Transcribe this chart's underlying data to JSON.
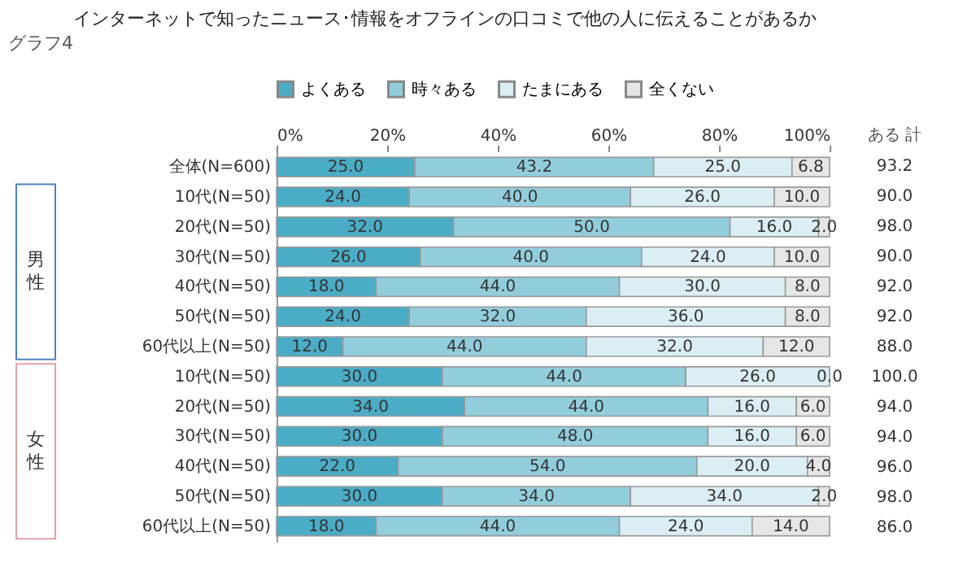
{
  "chart_data": {
    "type": "bar",
    "orientation": "horizontal",
    "stacked": true,
    "title": "インターネットで知ったニュース･情報をオフラインの口コミで他の人に伝えることがあるか",
    "categories": [
      "全体(N=600)",
      "10代(N=50)",
      "20代(N=50)",
      "30代(N=50)",
      "40代(N=50)",
      "50代(N=50)",
      "60代以上(N=50)",
      "10代(N=50)",
      "20代(N=50)",
      "30代(N=50)",
      "40代(N=50)",
      "50代(N=50)",
      "60代以上(N=50)"
    ],
    "series": [
      {
        "name": "よくある",
        "color": "#4bacc6",
        "values": [
          25.0,
          24.0,
          32.0,
          26.0,
          18.0,
          24.0,
          12.0,
          30.0,
          34.0,
          30.0,
          22.0,
          30.0,
          18.0
        ],
        "value_labels": [
          "25.0",
          "24.0",
          "32.0",
          "26.0",
          "18.0",
          "24.0",
          "12.0",
          "30.0",
          "34.0",
          "30.0",
          "22.0",
          "30.0",
          "18.0"
        ]
      },
      {
        "name": "時々ある",
        "color": "#92cddc",
        "values": [
          43.2,
          40.0,
          50.0,
          40.0,
          44.0,
          32.0,
          44.0,
          44.0,
          44.0,
          48.0,
          54.0,
          34.0,
          44.0
        ],
        "value_labels": [
          "43.2",
          "40.0",
          "50.0",
          "40.0",
          "44.0",
          "32.0",
          "44.0",
          "44.0",
          "44.0",
          "48.0",
          "54.0",
          "34.0",
          "44.0"
        ]
      },
      {
        "name": "たまにある",
        "color": "#daeef3",
        "values": [
          25.0,
          26.0,
          16.0,
          24.0,
          30.0,
          36.0,
          32.0,
          26.0,
          16.0,
          16.0,
          20.0,
          34.0,
          24.0
        ],
        "value_labels": [
          "25.0",
          "26.0",
          "16.0",
          "24.0",
          "30.0",
          "36.0",
          "32.0",
          "26.0",
          "16.0",
          "16.0",
          "20.0",
          "34.0",
          "24.0"
        ]
      },
      {
        "name": "全くない",
        "color": "#e6e6e6",
        "values": [
          6.8,
          10.0,
          2.0,
          10.0,
          8.0,
          8.0,
          12.0,
          0.0,
          6.0,
          6.0,
          4.0,
          2.0,
          14.0
        ],
        "value_labels": [
          "6.8",
          "10.0",
          "2.0",
          "10.0",
          "8.0",
          "8.0",
          "12.0",
          "0.0",
          "6.0",
          "6.0",
          "4.0",
          "2.0",
          "14.0"
        ]
      }
    ],
    "xlim": [
      0,
      100
    ],
    "xticks": [
      {
        "value": 0,
        "label": "0%"
      },
      {
        "value": 20,
        "label": "20%"
      },
      {
        "value": 40,
        "label": "40%"
      },
      {
        "value": 60,
        "label": "60%"
      },
      {
        "value": 80,
        "label": "80%"
      },
      {
        "value": 100,
        "label": "100%"
      }
    ],
    "annotations": [
      "グラフ4",
      "男性",
      "女性",
      "ある 計",
      "93.2",
      "90.0",
      "98.0",
      "90.0",
      "92.0",
      "92.0",
      "88.0",
      "100.0",
      "94.0",
      "94.0",
      "96.0",
      "98.0",
      "86.0"
    ],
    "legend": "top",
    "grid": false
  }
}
